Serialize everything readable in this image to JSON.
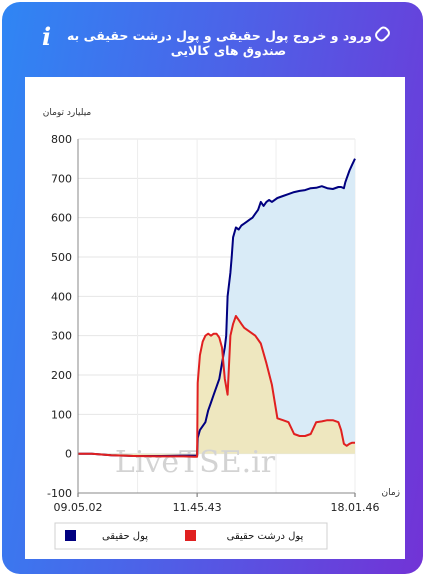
{
  "header": {
    "title": "ورود و خروج پول حقیقی و پول درشت حقیقی به صندوق های کالایی",
    "info_icon": "info-icon",
    "link_icon": "link-icon"
  },
  "watermark": "LiveTSE.ir",
  "chart_data": {
    "type": "area",
    "ylabel": "میلیارد تومان",
    "xlabel": "زمان",
    "ylim": [
      -100,
      800
    ],
    "yticks": [
      -100,
      0,
      100,
      200,
      300,
      400,
      500,
      600,
      700,
      800
    ],
    "x_tick_labels": [
      "09.05.02",
      "11.45.43",
      "18.01.46"
    ],
    "grid": true,
    "legend_position": "bottom",
    "series": [
      {
        "name": "پول حقیقی",
        "color": "#000080",
        "fill": "#d9ebf7",
        "points": [
          [
            0,
            0
          ],
          [
            0.05,
            0
          ],
          [
            0.12,
            -4
          ],
          [
            0.2,
            -6
          ],
          [
            0.3,
            -6
          ],
          [
            0.38,
            -5
          ],
          [
            0.42,
            -5
          ],
          [
            0.43,
            -5
          ],
          [
            0.432,
            40
          ],
          [
            0.44,
            60
          ],
          [
            0.46,
            80
          ],
          [
            0.47,
            110
          ],
          [
            0.48,
            130
          ],
          [
            0.49,
            150
          ],
          [
            0.5,
            170
          ],
          [
            0.51,
            190
          ],
          [
            0.52,
            230
          ],
          [
            0.53,
            270
          ],
          [
            0.535,
            300
          ],
          [
            0.54,
            400
          ],
          [
            0.55,
            460
          ],
          [
            0.555,
            500
          ],
          [
            0.56,
            550
          ],
          [
            0.57,
            575
          ],
          [
            0.58,
            570
          ],
          [
            0.59,
            580
          ],
          [
            0.6,
            585
          ],
          [
            0.61,
            590
          ],
          [
            0.62,
            595
          ],
          [
            0.63,
            600
          ],
          [
            0.64,
            610
          ],
          [
            0.65,
            620
          ],
          [
            0.66,
            640
          ],
          [
            0.67,
            630
          ],
          [
            0.68,
            640
          ],
          [
            0.69,
            645
          ],
          [
            0.7,
            640
          ],
          [
            0.72,
            650
          ],
          [
            0.74,
            655
          ],
          [
            0.76,
            660
          ],
          [
            0.78,
            665
          ],
          [
            0.8,
            668
          ],
          [
            0.82,
            670
          ],
          [
            0.84,
            675
          ],
          [
            0.86,
            676
          ],
          [
            0.88,
            680
          ],
          [
            0.9,
            675
          ],
          [
            0.92,
            673
          ],
          [
            0.94,
            678
          ],
          [
            0.95,
            678
          ],
          [
            0.96,
            675
          ],
          [
            0.965,
            690
          ],
          [
            0.97,
            700
          ],
          [
            0.98,
            720
          ],
          [
            0.99,
            735
          ],
          [
            1.0,
            750
          ]
        ]
      },
      {
        "name": "پول درشت حقیقی",
        "color": "#e02020",
        "fill": "#efe7bc",
        "points": [
          [
            0,
            0
          ],
          [
            0.05,
            0
          ],
          [
            0.12,
            -4
          ],
          [
            0.2,
            -6
          ],
          [
            0.3,
            -7
          ],
          [
            0.38,
            -7
          ],
          [
            0.42,
            -8
          ],
          [
            0.43,
            -8
          ],
          [
            0.432,
            180
          ],
          [
            0.44,
            250
          ],
          [
            0.45,
            285
          ],
          [
            0.46,
            300
          ],
          [
            0.47,
            305
          ],
          [
            0.48,
            300
          ],
          [
            0.49,
            305
          ],
          [
            0.5,
            305
          ],
          [
            0.51,
            295
          ],
          [
            0.52,
            270
          ],
          [
            0.53,
            190
          ],
          [
            0.54,
            150
          ],
          [
            0.55,
            300
          ],
          [
            0.56,
            330
          ],
          [
            0.57,
            350
          ],
          [
            0.58,
            340
          ],
          [
            0.59,
            330
          ],
          [
            0.6,
            320
          ],
          [
            0.62,
            310
          ],
          [
            0.64,
            300
          ],
          [
            0.66,
            280
          ],
          [
            0.68,
            230
          ],
          [
            0.7,
            175
          ],
          [
            0.72,
            90
          ],
          [
            0.74,
            85
          ],
          [
            0.76,
            80
          ],
          [
            0.78,
            50
          ],
          [
            0.8,
            45
          ],
          [
            0.82,
            45
          ],
          [
            0.84,
            50
          ],
          [
            0.86,
            80
          ],
          [
            0.88,
            82
          ],
          [
            0.9,
            85
          ],
          [
            0.92,
            85
          ],
          [
            0.94,
            80
          ],
          [
            0.95,
            60
          ],
          [
            0.96,
            25
          ],
          [
            0.97,
            20
          ],
          [
            0.98,
            25
          ],
          [
            0.99,
            28
          ],
          [
            1.0,
            28
          ]
        ]
      }
    ]
  }
}
